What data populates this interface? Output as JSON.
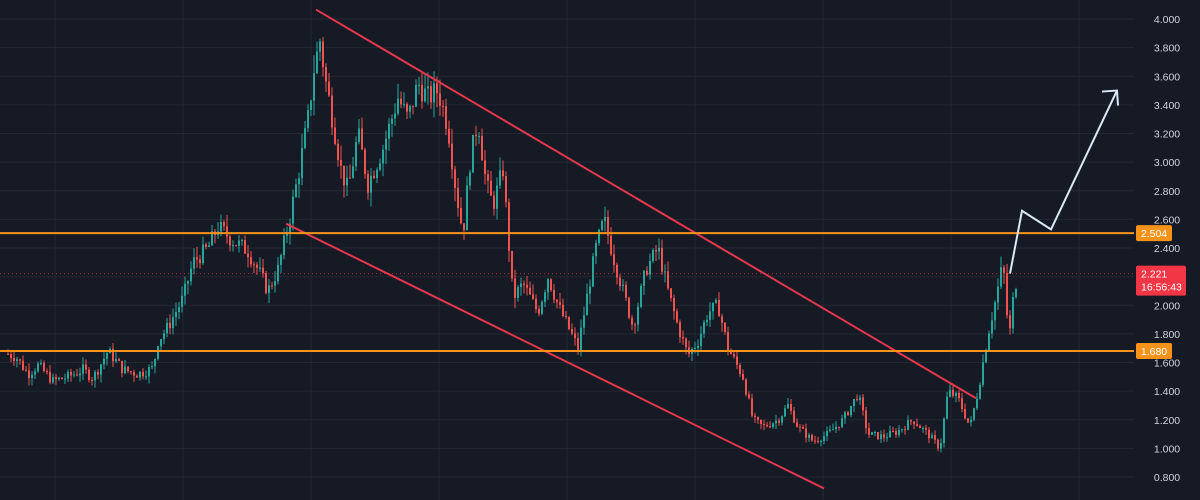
{
  "theme": {
    "background": "#161a25",
    "grid": "#232733",
    "axis_text": "#d1d4dc",
    "up_color": "#26a69a",
    "down_color": "#ef5350",
    "channel_color": "#e5374d",
    "level_color": "#f7931a",
    "projection_color": "#dbe8f5",
    "last_price_bg": "#f23645"
  },
  "chart_data": {
    "type": "candlestick",
    "title": "",
    "xlabel": "",
    "ylabel": "",
    "ylim": [
      0.72,
      4.12
    ],
    "grid": true,
    "y_ticks": [
      "4.000",
      "3.800",
      "3.600",
      "3.400",
      "3.200",
      "3.000",
      "2.800",
      "2.600",
      "2.400",
      "2.200",
      "2.000",
      "1.800",
      "1.600",
      "1.400",
      "1.200",
      "1.000",
      "0.800"
    ],
    "price_path": [
      [
        0,
        1.66
      ],
      [
        8,
        1.64
      ],
      [
        20,
        1.52
      ],
      [
        30,
        1.58
      ],
      [
        45,
        1.47
      ],
      [
        60,
        1.5
      ],
      [
        75,
        1.55
      ],
      [
        85,
        1.49
      ],
      [
        100,
        1.68
      ],
      [
        115,
        1.55
      ],
      [
        130,
        1.52
      ],
      [
        145,
        1.56
      ],
      [
        150,
        1.75
      ],
      [
        160,
        1.85
      ],
      [
        175,
        2.05
      ],
      [
        185,
        2.3
      ],
      [
        200,
        2.4
      ],
      [
        210,
        2.55
      ],
      [
        225,
        2.45
      ],
      [
        240,
        2.38
      ],
      [
        250,
        2.25
      ],
      [
        260,
        2.1
      ],
      [
        270,
        2.25
      ],
      [
        280,
        2.55
      ],
      [
        290,
        2.9
      ],
      [
        300,
        3.3
      ],
      [
        306,
        3.65
      ],
      [
        312,
        3.85
      ],
      [
        318,
        3.55
      ],
      [
        326,
        3.25
      ],
      [
        333,
        2.95
      ],
      [
        340,
        2.8
      ],
      [
        350,
        3.2
      ],
      [
        360,
        2.85
      ],
      [
        375,
        3.1
      ],
      [
        390,
        3.45
      ],
      [
        400,
        3.3
      ],
      [
        410,
        3.55
      ],
      [
        420,
        3.45
      ],
      [
        430,
        3.5
      ],
      [
        440,
        3.25
      ],
      [
        448,
        2.8
      ],
      [
        455,
        2.5
      ],
      [
        462,
        3.0
      ],
      [
        470,
        3.3
      ],
      [
        478,
        2.85
      ],
      [
        485,
        2.7
      ],
      [
        495,
        2.95
      ],
      [
        505,
        2.05
      ],
      [
        515,
        2.15
      ],
      [
        530,
        1.95
      ],
      [
        540,
        2.2
      ],
      [
        550,
        2.0
      ],
      [
        560,
        1.85
      ],
      [
        570,
        1.7
      ],
      [
        580,
        2.1
      ],
      [
        588,
        2.4
      ],
      [
        596,
        2.6
      ],
      [
        605,
        2.35
      ],
      [
        615,
        2.1
      ],
      [
        625,
        1.85
      ],
      [
        638,
        2.25
      ],
      [
        650,
        2.4
      ],
      [
        660,
        2.1
      ],
      [
        670,
        1.85
      ],
      [
        680,
        1.65
      ],
      [
        690,
        1.75
      ],
      [
        700,
        1.95
      ],
      [
        710,
        2.0
      ],
      [
        720,
        1.7
      ],
      [
        735,
        1.5
      ],
      [
        745,
        1.2
      ],
      [
        755,
        1.15
      ],
      [
        770,
        1.2
      ],
      [
        780,
        1.3
      ],
      [
        790,
        1.15
      ],
      [
        805,
        1.05
      ],
      [
        820,
        1.1
      ],
      [
        835,
        1.2
      ],
      [
        850,
        1.38
      ],
      [
        860,
        1.1
      ],
      [
        875,
        1.08
      ],
      [
        890,
        1.12
      ],
      [
        905,
        1.2
      ],
      [
        920,
        1.1
      ],
      [
        932,
        1.0
      ],
      [
        940,
        1.4
      ],
      [
        950,
        1.35
      ],
      [
        962,
        1.15
      ],
      [
        970,
        1.4
      ],
      [
        980,
        1.8
      ],
      [
        988,
        2.05
      ],
      [
        995,
        2.3
      ],
      [
        1001,
        1.75
      ],
      [
        1006,
        2.1
      ],
      [
        1010,
        2.22
      ]
    ],
    "channel": {
      "upper": [
        [
          0.35,
          4.08
        ],
        [
          1.64,
          1.35
        ]
      ],
      "lower": [
        [
          0.24,
          2.57
        ],
        [
          1.39,
          0.72
        ]
      ]
    },
    "projection": [
      [
        2.221,
        1.0
      ],
      [
        2.6,
        1.05
      ],
      [
        2.5,
        1.13
      ],
      [
        3.4,
        1.24
      ]
    ],
    "levels": [
      {
        "label": "2.504",
        "value": 2.504
      },
      {
        "label": "1.680",
        "value": 1.68
      }
    ],
    "last_price": {
      "label": "2.221",
      "value": 2.221,
      "countdown": "16:56:43"
    }
  }
}
